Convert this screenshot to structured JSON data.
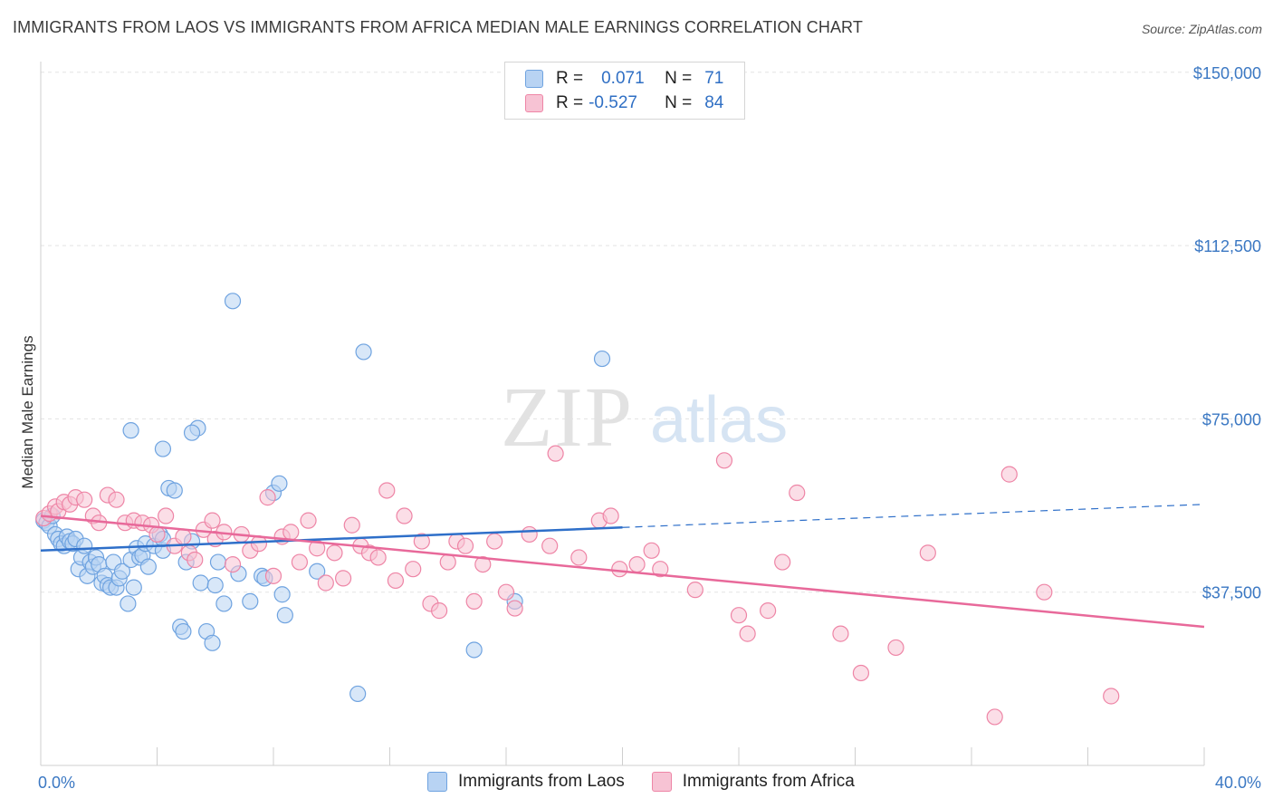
{
  "title": "IMMIGRANTS FROM LAOS VS IMMIGRANTS FROM AFRICA MEDIAN MALE EARNINGS CORRELATION CHART",
  "source": "Source: ZipAtlas.com",
  "legend": {
    "rows": [
      {
        "r_label": "R =",
        "r_value": "0.071",
        "n_label": "N =",
        "n_value": "71"
      },
      {
        "r_label": "R =",
        "r_value": "-0.527",
        "n_label": "N =",
        "n_value": "84"
      }
    ]
  },
  "bottom_legend": [
    "Immigrants from Laos",
    "Immigrants from Africa"
  ],
  "watermark": {
    "zip": "ZIP",
    "atlas": "atlas"
  },
  "colors": {
    "laos": "#6fa3e0",
    "laos_fill": "#b8d3f3",
    "africa": "#ee85a6",
    "africa_fill": "#f7c3d4",
    "laos_line": "#2e6fc9",
    "africa_line": "#e8699a"
  },
  "chart_data": {
    "type": "scatter",
    "title": "IMMIGRANTS FROM LAOS VS IMMIGRANTS FROM AFRICA MEDIAN MALE EARNINGS CORRELATION CHART",
    "xlabel": "",
    "ylabel": "Median Male Earnings",
    "xlim": [
      0,
      40
    ],
    "ylim": [
      0,
      155000
    ],
    "x_tick_labels": [
      "0.0%",
      "40.0%"
    ],
    "y_ticks": [
      37500,
      75000,
      112500,
      150000
    ],
    "y_tick_labels": [
      "$37,500",
      "$75,000",
      "$112,500",
      "$150,000"
    ],
    "series": [
      {
        "name": "Immigrants from Laos",
        "r": 0.071,
        "n": 71,
        "trend": {
          "x0": 0,
          "y0": 46500,
          "x1": 20,
          "y1": 51500,
          "dash_to_x": 40,
          "dash_to_y": 56500
        },
        "points": [
          [
            0.1,
            53000
          ],
          [
            0.2,
            52500
          ],
          [
            0.3,
            51800
          ],
          [
            0.4,
            54000
          ],
          [
            0.5,
            50000
          ],
          [
            0.6,
            49000
          ],
          [
            0.7,
            48000
          ],
          [
            0.8,
            47500
          ],
          [
            0.9,
            49500
          ],
          [
            1.0,
            48500
          ],
          [
            1.1,
            48000
          ],
          [
            1.2,
            49000
          ],
          [
            1.3,
            42500
          ],
          [
            1.4,
            45000
          ],
          [
            1.5,
            47500
          ],
          [
            1.6,
            41000
          ],
          [
            1.7,
            44000
          ],
          [
            1.8,
            43000
          ],
          [
            1.9,
            45000
          ],
          [
            2.0,
            43500
          ],
          [
            2.1,
            39500
          ],
          [
            2.2,
            41000
          ],
          [
            2.3,
            39000
          ],
          [
            2.4,
            38500
          ],
          [
            2.5,
            44000
          ],
          [
            2.6,
            38500
          ],
          [
            2.7,
            40500
          ],
          [
            2.8,
            42000
          ],
          [
            3.0,
            35000
          ],
          [
            3.1,
            44500
          ],
          [
            3.2,
            38500
          ],
          [
            3.3,
            47000
          ],
          [
            3.4,
            45000
          ],
          [
            3.5,
            45500
          ],
          [
            3.6,
            48000
          ],
          [
            3.7,
            43000
          ],
          [
            3.9,
            47500
          ],
          [
            4.1,
            50000
          ],
          [
            4.2,
            46500
          ],
          [
            4.4,
            60000
          ],
          [
            4.6,
            59500
          ],
          [
            4.8,
            30000
          ],
          [
            4.9,
            29000
          ],
          [
            5.0,
            44000
          ],
          [
            5.2,
            48500
          ],
          [
            5.4,
            73000
          ],
          [
            5.5,
            39500
          ],
          [
            5.7,
            29000
          ],
          [
            5.9,
            26500
          ],
          [
            6.1,
            44000
          ],
          [
            6.3,
            35000
          ],
          [
            6.6,
            100500
          ],
          [
            6.8,
            41500
          ],
          [
            7.2,
            35500
          ],
          [
            7.6,
            41000
          ],
          [
            7.7,
            40500
          ],
          [
            8.0,
            59000
          ],
          [
            8.2,
            61000
          ],
          [
            8.3,
            37000
          ],
          [
            9.5,
            42000
          ],
          [
            10.9,
            15500
          ],
          [
            11.1,
            89500
          ],
          [
            14.9,
            25000
          ],
          [
            16.3,
            35500
          ],
          [
            19.3,
            88000
          ],
          [
            3.1,
            72500
          ],
          [
            4.2,
            68500
          ],
          [
            5.2,
            72000
          ],
          [
            4.2,
            49000
          ],
          [
            6.0,
            39000
          ],
          [
            8.4,
            32500
          ]
        ]
      },
      {
        "name": "Immigrants from Africa",
        "r": -0.527,
        "n": 84,
        "trend": {
          "x0": 0,
          "y0": 54000,
          "x1": 40,
          "y1": 30000
        },
        "points": [
          [
            0.1,
            53500
          ],
          [
            0.3,
            54500
          ],
          [
            0.5,
            56000
          ],
          [
            0.6,
            55000
          ],
          [
            0.8,
            57000
          ],
          [
            1.0,
            56500
          ],
          [
            1.2,
            58000
          ],
          [
            1.5,
            57500
          ],
          [
            1.8,
            54000
          ],
          [
            2.0,
            52500
          ],
          [
            2.3,
            58500
          ],
          [
            2.6,
            57500
          ],
          [
            2.9,
            52500
          ],
          [
            3.2,
            53000
          ],
          [
            3.5,
            52500
          ],
          [
            3.8,
            52000
          ],
          [
            4.0,
            50000
          ],
          [
            4.3,
            54000
          ],
          [
            4.6,
            47500
          ],
          [
            4.9,
            49500
          ],
          [
            5.1,
            46000
          ],
          [
            5.3,
            44500
          ],
          [
            5.6,
            51000
          ],
          [
            5.9,
            53000
          ],
          [
            6.0,
            49000
          ],
          [
            6.3,
            50500
          ],
          [
            6.6,
            43500
          ],
          [
            6.9,
            50000
          ],
          [
            7.2,
            46500
          ],
          [
            7.5,
            48000
          ],
          [
            7.8,
            58000
          ],
          [
            8.0,
            41000
          ],
          [
            8.3,
            49500
          ],
          [
            8.6,
            50500
          ],
          [
            8.9,
            44000
          ],
          [
            9.2,
            53000
          ],
          [
            9.5,
            47000
          ],
          [
            9.8,
            39500
          ],
          [
            10.1,
            46000
          ],
          [
            10.4,
            40500
          ],
          [
            10.7,
            52000
          ],
          [
            11.0,
            47500
          ],
          [
            11.3,
            46000
          ],
          [
            11.6,
            45000
          ],
          [
            11.9,
            59500
          ],
          [
            12.2,
            40000
          ],
          [
            12.5,
            54000
          ],
          [
            12.8,
            42500
          ],
          [
            13.1,
            48500
          ],
          [
            13.4,
            35000
          ],
          [
            13.7,
            33500
          ],
          [
            14.0,
            44000
          ],
          [
            14.3,
            48500
          ],
          [
            14.6,
            47500
          ],
          [
            14.9,
            35500
          ],
          [
            15.2,
            43500
          ],
          [
            15.6,
            48500
          ],
          [
            16.0,
            37500
          ],
          [
            16.3,
            34000
          ],
          [
            16.8,
            50000
          ],
          [
            17.5,
            47500
          ],
          [
            17.7,
            67500
          ],
          [
            18.5,
            45000
          ],
          [
            19.2,
            53000
          ],
          [
            19.6,
            54000
          ],
          [
            19.9,
            42500
          ],
          [
            20.5,
            43500
          ],
          [
            21.0,
            46500
          ],
          [
            21.3,
            42500
          ],
          [
            22.5,
            38000
          ],
          [
            23.5,
            66000
          ],
          [
            24.0,
            32500
          ],
          [
            24.3,
            28500
          ],
          [
            25.0,
            33500
          ],
          [
            25.5,
            44000
          ],
          [
            26.0,
            59000
          ],
          [
            27.5,
            28500
          ],
          [
            28.2,
            20000
          ],
          [
            29.4,
            25500
          ],
          [
            30.5,
            46000
          ],
          [
            32.8,
            10500
          ],
          [
            33.3,
            63000
          ],
          [
            34.5,
            37500
          ],
          [
            36.8,
            15000
          ]
        ]
      }
    ]
  }
}
